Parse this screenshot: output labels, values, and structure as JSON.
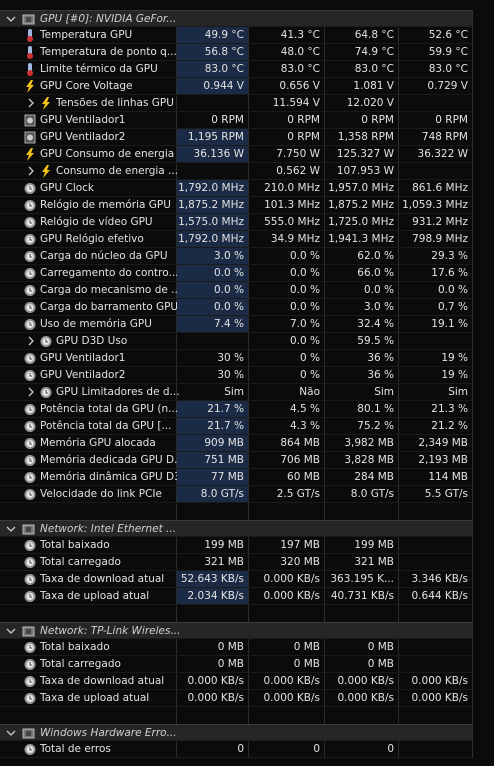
{
  "sections": [
    {
      "title": "GPU [#0]: NVIDIA GeFor...",
      "rows": [
        {
          "label": "Temperatura GPU",
          "values": [
            "49.9 °C",
            "41.3 °C",
            "64.8 °C",
            "52.6 °C"
          ]
        },
        {
          "label": "Temperatura de ponto q...",
          "values": [
            "56.8 °C",
            "48.0 °C",
            "74.9 °C",
            "59.9 °C"
          ]
        },
        {
          "label": "Limite térmico da GPU",
          "values": [
            "83.0 °C",
            "83.0 °C",
            "83.0 °C",
            "83.0 °C"
          ]
        },
        {
          "label": "GPU Core Voltage",
          "values": [
            "0.944 V",
            "0.656 V",
            "1.081 V",
            "0.729 V"
          ]
        },
        {
          "label": "Tensões de linhas GPU",
          "values": [
            null,
            "11.594 V",
            "12.020 V",
            null
          ]
        },
        {
          "label": "GPU Ventilador1",
          "values": [
            "0 RPM",
            "0 RPM",
            "0 RPM",
            "0 RPM"
          ]
        },
        {
          "label": "GPU Ventilador2",
          "values": [
            "1,195 RPM",
            "0 RPM",
            "1,358 RPM",
            "748 RPM"
          ]
        },
        {
          "label": "GPU Consumo de energia",
          "values": [
            "36.136 W",
            "7.750 W",
            "125.327 W",
            "36.322 W"
          ]
        },
        {
          "label": "Consumo de energia ...",
          "values": [
            null,
            "0.562 W",
            "107.953 W",
            null
          ]
        },
        {
          "label": "GPU Clock",
          "values": [
            "1,792.0 MHz",
            "210.0 MHz",
            "1,957.0 MHz",
            "861.6 MHz"
          ]
        },
        {
          "label": "Relógio de memória GPU",
          "values": [
            "1,875.2 MHz",
            "101.3 MHz",
            "1,875.2 MHz",
            "1,059.3 MHz"
          ]
        },
        {
          "label": "Relógio de vídeo GPU",
          "values": [
            "1,575.0 MHz",
            "555.0 MHz",
            "1,725.0 MHz",
            "931.2 MHz"
          ]
        },
        {
          "label": "GPU Relógio efetivo",
          "values": [
            "1,792.0 MHz",
            "34.9 MHz",
            "1,941.3 MHz",
            "798.9 MHz"
          ]
        },
        {
          "label": "Carga do núcleo da GPU",
          "values": [
            "3.0 %",
            "0.0 %",
            "62.0 %",
            "29.3 %"
          ]
        },
        {
          "label": "Carregamento do contro...",
          "values": [
            "0.0 %",
            "0.0 %",
            "66.0 %",
            "17.6 %"
          ]
        },
        {
          "label": "Carga do mecanismo de ...",
          "values": [
            "0.0 %",
            "0.0 %",
            "0.0 %",
            "0.0 %"
          ]
        },
        {
          "label": "Carga do barramento GPU",
          "values": [
            "0.0 %",
            "0.0 %",
            "3.0 %",
            "0.7 %"
          ]
        },
        {
          "label": "Uso de memória GPU",
          "values": [
            "7.4 %",
            "7.0 %",
            "32.4 %",
            "19.1 %"
          ]
        },
        {
          "label": "GPU D3D Uso",
          "values": [
            null,
            "0.0 %",
            "59.5 %",
            null
          ]
        },
        {
          "label": "GPU Ventilador1",
          "values": [
            "30 %",
            "0 %",
            "36 %",
            "19 %"
          ]
        },
        {
          "label": "GPU Ventilador2",
          "values": [
            "30 %",
            "0 %",
            "36 %",
            "19 %"
          ]
        },
        {
          "label": "GPU Limitadores de d...",
          "values": [
            "Sim",
            "Não",
            "Sim",
            "Sim"
          ]
        },
        {
          "label": "Potência total da GPU (n...",
          "values": [
            "21.7 %",
            "4.5 %",
            "80.1 %",
            "21.3 %"
          ]
        },
        {
          "label": "Potência total da GPU [...",
          "values": [
            "21.7 %",
            "4.3 %",
            "75.2 %",
            "21.2 %"
          ]
        },
        {
          "label": "Memória GPU alocada",
          "values": [
            "909 MB",
            "864 MB",
            "3,982 MB",
            "2,349 MB"
          ]
        },
        {
          "label": "Memória dedicada GPU D...",
          "values": [
            "751 MB",
            "706 MB",
            "3,828 MB",
            "2,193 MB"
          ]
        },
        {
          "label": "Memória dinâmica GPU D3D",
          "values": [
            "77 MB",
            "60 MB",
            "284 MB",
            "114 MB"
          ]
        },
        {
          "label": "Velocidade do link PCIe",
          "values": [
            "8.0 GT/s",
            "2.5 GT/s",
            "8.0 GT/s",
            "5.5 GT/s"
          ]
        }
      ]
    },
    {
      "title": "Network: Intel Ethernet ...",
      "rows": [
        {
          "label": "Total baixado",
          "values": [
            "199 MB",
            "197 MB",
            "199 MB",
            null
          ]
        },
        {
          "label": "Total carregado",
          "values": [
            "321 MB",
            "320 MB",
            "321 MB",
            null
          ]
        },
        {
          "label": "Taxa de download atual",
          "values": [
            "52.643 KB/s",
            "0.000 KB/s",
            "363.195 K...",
            "3.346 KB/s"
          ]
        },
        {
          "label": "Taxa de upload atual",
          "values": [
            "2.034 KB/s",
            "0.000 KB/s",
            "40.731 KB/s",
            "0.644 KB/s"
          ]
        }
      ]
    },
    {
      "title": "Network: TP-Link Wireles...",
      "rows": [
        {
          "label": "Total baixado",
          "values": [
            "0 MB",
            "0 MB",
            "0 MB",
            null
          ]
        },
        {
          "label": "Total carregado",
          "values": [
            "0 MB",
            "0 MB",
            "0 MB",
            null
          ]
        },
        {
          "label": "Taxa de download atual",
          "values": [
            "0.000 KB/s",
            "0.000 KB/s",
            "0.000 KB/s",
            "0.000 KB/s"
          ]
        },
        {
          "label": "Taxa de upload atual",
          "values": [
            "0.000 KB/s",
            "0.000 KB/s",
            "0.000 KB/s",
            "0.000 KB/s"
          ]
        }
      ]
    },
    {
      "title": "Windows Hardware Erro...",
      "rows": [
        {
          "label": "Total de erros",
          "values": [
            "0",
            "0",
            "0",
            null
          ]
        }
      ]
    }
  ]
}
